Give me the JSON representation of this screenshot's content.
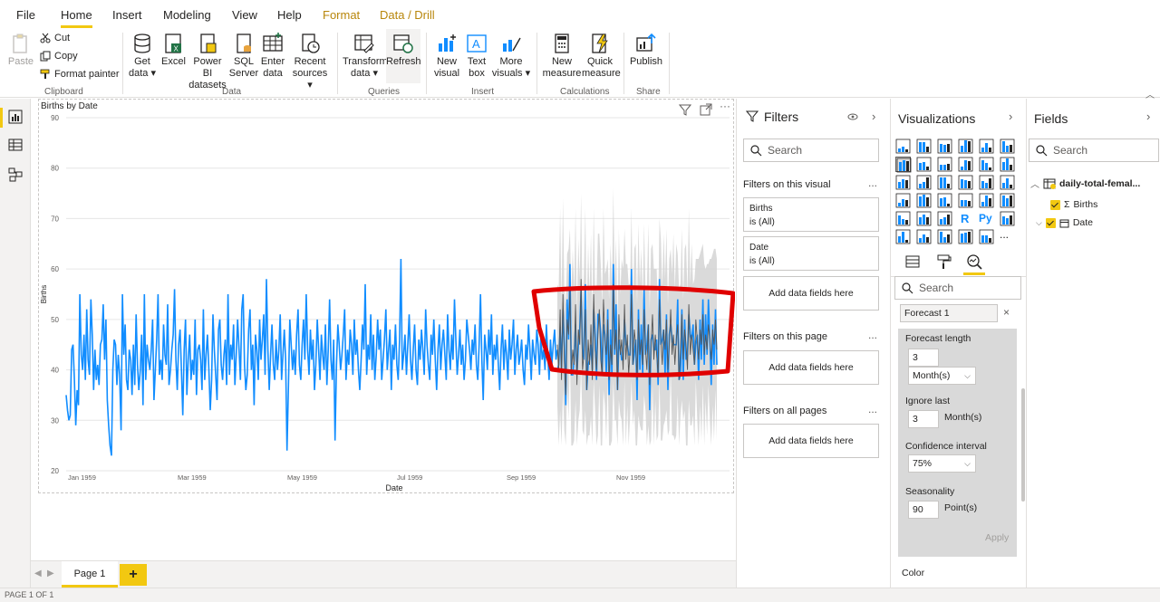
{
  "menu": {
    "items": [
      "File",
      "Home",
      "Insert",
      "Modeling",
      "View",
      "Help",
      "Format",
      "Data / Drill"
    ]
  },
  "ribbon": {
    "clipboard": {
      "paste": "Paste",
      "cut": "Cut",
      "copy": "Copy",
      "format_painter": "Format painter",
      "label": "Clipboard"
    },
    "data": {
      "get_data": "Get data",
      "excel": "Excel",
      "power_bi": "Power BI datasets",
      "sql": "SQL Server",
      "enter_data": "Enter data",
      "recent": "Recent sources",
      "label": "Data"
    },
    "queries": {
      "transform": "Transform data",
      "refresh": "Refresh",
      "label": "Queries"
    },
    "insert": {
      "new_visual": "New visual",
      "text_box": "Text box",
      "more_visuals": "More visuals",
      "label": "Insert"
    },
    "calculations": {
      "new_measure": "New measure",
      "quick_measure": "Quick measure",
      "label": "Calculations"
    },
    "share": {
      "publish": "Publish",
      "label": "Share"
    }
  },
  "visual": {
    "title": "Births by Date"
  },
  "chart_data": {
    "type": "line",
    "title": "Births by Date",
    "xlabel": "Date",
    "ylabel": "Births",
    "ylim": [
      20,
      90
    ],
    "yticks": [
      20,
      30,
      40,
      50,
      60,
      70,
      80,
      90
    ],
    "xticks": [
      "Jan 1959",
      "Mar 1959",
      "May 1959",
      "Jul 1959",
      "Sep 1959",
      "Nov 1959"
    ],
    "grid": true,
    "series": [
      {
        "values": [
          35,
          32,
          30,
          31,
          44,
          45,
          38,
          29,
          36,
          33,
          55,
          43,
          40,
          47,
          38,
          52,
          42,
          39,
          54,
          47,
          36,
          44,
          38,
          41,
          37,
          45,
          46,
          53,
          42,
          50,
          34,
          29,
          25,
          23,
          40,
          46,
          45,
          37,
          43,
          39,
          28,
          55,
          43,
          49,
          38,
          36,
          44,
          42,
          35,
          45,
          37,
          51,
          41,
          36,
          40,
          47,
          33,
          55,
          38,
          45,
          42,
          40,
          44,
          50,
          34,
          40,
          46,
          55,
          39,
          42,
          38,
          49,
          43,
          41,
          53,
          37,
          40,
          44,
          47,
          56,
          42,
          36,
          45,
          48,
          40,
          31,
          44,
          50,
          35,
          42,
          47,
          38,
          42,
          39,
          50,
          35,
          44,
          45,
          42,
          36,
          52,
          38,
          43,
          47,
          40,
          32,
          38,
          51,
          44,
          39,
          34,
          48,
          50,
          41,
          38,
          43,
          46,
          37,
          55,
          39,
          45,
          42,
          49,
          37,
          43,
          50,
          44,
          38,
          52,
          55,
          41,
          36,
          39,
          48,
          52,
          40,
          45,
          33,
          47,
          44,
          38,
          50,
          42,
          46,
          51,
          39,
          58,
          44,
          36,
          43,
          49,
          41,
          38,
          46,
          40,
          44,
          51,
          38,
          43,
          48,
          42,
          24,
          37,
          50,
          45,
          40,
          44,
          39,
          47,
          52,
          41,
          38,
          45,
          50,
          42,
          55,
          44,
          39,
          48,
          42,
          46,
          36,
          41,
          50,
          44,
          38,
          47,
          43,
          40,
          49,
          37,
          44,
          54,
          42,
          38,
          46,
          26,
          41,
          49,
          45,
          40,
          43,
          47,
          52,
          38,
          44,
          41,
          48,
          45,
          39,
          50,
          43,
          46,
          40,
          36,
          42,
          49,
          44,
          57,
          39,
          45,
          42,
          51,
          40,
          47,
          38,
          43,
          50,
          44,
          48,
          38,
          42,
          46,
          52,
          40,
          44,
          48,
          36,
          45,
          42,
          49,
          41,
          38,
          46,
          62,
          40,
          43,
          47,
          39,
          45,
          51,
          42,
          38,
          44,
          49,
          40,
          37,
          46,
          42,
          48,
          44,
          39,
          52,
          45,
          41,
          38,
          47,
          43,
          50,
          42,
          36,
          44,
          49,
          40,
          45,
          48,
          43,
          38,
          51,
          44,
          40,
          47,
          42,
          54,
          46,
          39,
          43,
          48,
          41,
          45,
          38,
          42,
          50,
          47,
          44,
          40,
          46,
          43,
          49,
          41,
          38,
          45,
          55,
          42,
          34,
          47,
          44,
          40,
          48,
          43,
          51,
          39,
          45,
          42,
          47,
          41,
          36,
          44,
          49,
          40,
          46,
          43,
          38,
          48,
          42,
          45,
          50,
          39,
          44,
          47,
          41,
          43,
          46,
          40,
          37,
          45,
          42,
          49,
          44,
          38,
          46,
          43,
          41,
          48,
          45,
          39,
          47,
          42,
          44,
          40,
          49,
          43,
          38,
          46,
          41,
          45,
          48,
          42,
          44
        ],
        "forecast_values": [
          45,
          40,
          52,
          38,
          55,
          42,
          35,
          50,
          47,
          56,
          39,
          44,
          41,
          53,
          37,
          48,
          45,
          58,
          40,
          43,
          52,
          36,
          46,
          41,
          49,
          38,
          55,
          44,
          40,
          47,
          52,
          42,
          39,
          54,
          46,
          43,
          50,
          38,
          45,
          41,
          57,
          44,
          48,
          36,
          51,
          43,
          46,
          40,
          53,
          42,
          47,
          39,
          44,
          55,
          41,
          48,
          45,
          38,
          50,
          43,
          46,
          41,
          52,
          44,
          40,
          49,
          37,
          45,
          51,
          42,
          47,
          43,
          39,
          54,
          46,
          41,
          48,
          44,
          50,
          40,
          45,
          52,
          43,
          47,
          41,
          46,
          49,
          38,
          44,
          51,
          42,
          48,
          45,
          40,
          53,
          43,
          47,
          44,
          41,
          50,
          46,
          42,
          48,
          45,
          51,
          43,
          47,
          44,
          49,
          46,
          42,
          48,
          45,
          50,
          44
        ]
      }
    ],
    "forecast": {
      "name": "Forecast 1",
      "band_color": "#d3d3d3",
      "line_color": "#555555"
    },
    "annotation": {
      "color": "#e00000"
    },
    "colors": {
      "series": "#118dff"
    }
  },
  "pages": {
    "tab": "Page 1",
    "add": "+",
    "status": "PAGE 1 OF 1"
  },
  "filters": {
    "title": "Filters",
    "search": "Search",
    "on_visual": "Filters on this visual",
    "cards": [
      {
        "field": "Births",
        "state": "is (All)"
      },
      {
        "field": "Date",
        "state": "is (All)"
      }
    ],
    "add_here": "Add data fields here",
    "on_page": "Filters on this page",
    "on_all": "Filters on all pages",
    "dots": "..."
  },
  "viz": {
    "title": "Visualizations",
    "search": "Search",
    "forecast_tag": "Forecast 1",
    "forecast_length_label": "Forecast length",
    "forecast_length": "3",
    "forecast_unit": "Month(s)",
    "ignore_last_label": "Ignore last",
    "ignore_last": "3",
    "ignore_unit": "Month(s)",
    "confidence_label": "Confidence interval",
    "confidence": "75%",
    "seasonality_label": "Seasonality",
    "seasonality": "90",
    "seasonality_unit": "Point(s)",
    "apply": "Apply",
    "color_label": "Color",
    "r_glyph": "R",
    "py_glyph": "Py",
    "more": "..."
  },
  "fields": {
    "title": "Fields",
    "search": "Search",
    "table": "daily-total-femal...",
    "items": [
      "Births",
      "Date"
    ]
  }
}
